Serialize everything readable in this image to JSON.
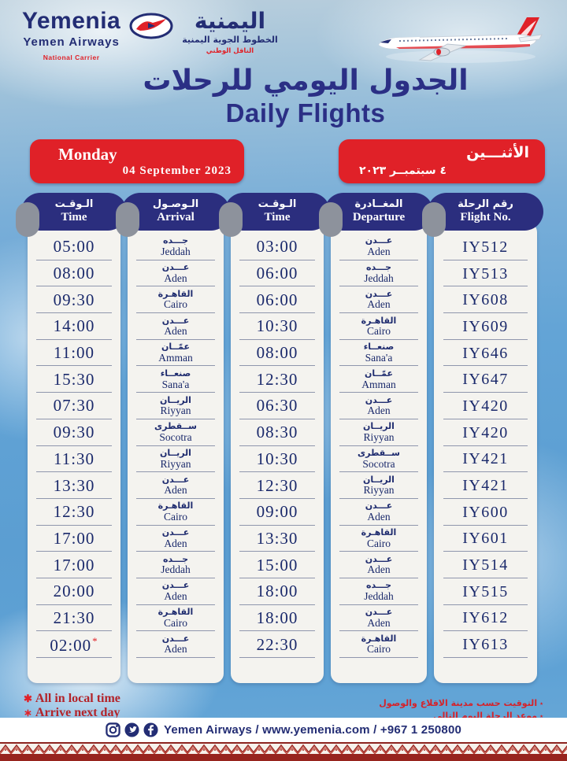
{
  "colors": {
    "accent_red": "#e02128",
    "navy": "#2b2e7e",
    "sky": "#63a4d6",
    "maroon": "#97241e"
  },
  "brand": {
    "wordmark_en": "Yemenia",
    "subtitle_en": "Yemen Airways",
    "carrier_en": "National Carrier",
    "wordmark_ar": "اليمنية",
    "subtitle_ar": "الخطوط الجوية اليمنية",
    "carrier_ar": "الناقل الوطني"
  },
  "title": {
    "ar": "الجدول اليومي للرحلات",
    "en": "Daily Flights"
  },
  "banners": {
    "left": {
      "day": "Monday",
      "date": "04  September  2023"
    },
    "right": {
      "day": "الأثنـــين",
      "date": "٤  سبتمبــر  ٢٠٢٣"
    }
  },
  "table": {
    "headers": {
      "arr_time": {
        "ar": "الـوقـت",
        "en": "Time"
      },
      "arrival": {
        "ar": "الـوصـول",
        "en": "Arrival"
      },
      "dep_time": {
        "ar": "الـوقـت",
        "en": "Time"
      },
      "departure": {
        "ar": "المغــادرة",
        "en": "Departure"
      },
      "flight_no": {
        "ar": "رقم الرحلة",
        "en": "Flight No."
      }
    },
    "flights": [
      {
        "arr_time": "05:00",
        "arr_city_ar": "جـــده",
        "arr_city_en": "Jeddah",
        "dep_time": "03:00",
        "dep_city_ar": "عـــدن",
        "dep_city_en": "Aden",
        "flight_no": "IY512"
      },
      {
        "arr_time": "08:00",
        "arr_city_ar": "عـــدن",
        "arr_city_en": "Aden",
        "dep_time": "06:00",
        "dep_city_ar": "جـــده",
        "dep_city_en": "Jeddah",
        "flight_no": "IY513"
      },
      {
        "arr_time": "09:30",
        "arr_city_ar": "القاهـرة",
        "arr_city_en": "Cairo",
        "dep_time": "06:00",
        "dep_city_ar": "عـــدن",
        "dep_city_en": "Aden",
        "flight_no": "IY608"
      },
      {
        "arr_time": "14:00",
        "arr_city_ar": "عـــدن",
        "arr_city_en": "Aden",
        "dep_time": "10:30",
        "dep_city_ar": "القاهـرة",
        "dep_city_en": "Cairo",
        "flight_no": "IY609"
      },
      {
        "arr_time": "11:00",
        "arr_city_ar": "عمّــان",
        "arr_city_en": "Amman",
        "dep_time": "08:00",
        "dep_city_ar": "صنعــاء",
        "dep_city_en": "Sana'a",
        "flight_no": "IY646"
      },
      {
        "arr_time": "15:30",
        "arr_city_ar": "صنعــاء",
        "arr_city_en": "Sana'a",
        "dep_time": "12:30",
        "dep_city_ar": "عمّــان",
        "dep_city_en": "Amman",
        "flight_no": "IY647"
      },
      {
        "arr_time": "07:30",
        "arr_city_ar": "الريــان",
        "arr_city_en": "Riyyan",
        "dep_time": "06:30",
        "dep_city_ar": "عـــدن",
        "dep_city_en": "Aden",
        "flight_no": "IY420"
      },
      {
        "arr_time": "09:30",
        "arr_city_ar": "ســقطرى",
        "arr_city_en": "Socotra",
        "dep_time": "08:30",
        "dep_city_ar": "الريــان",
        "dep_city_en": "Riyyan",
        "flight_no": "IY420"
      },
      {
        "arr_time": "11:30",
        "arr_city_ar": "الريــان",
        "arr_city_en": "Riyyan",
        "dep_time": "10:30",
        "dep_city_ar": "ســقطرى",
        "dep_city_en": "Socotra",
        "flight_no": "IY421"
      },
      {
        "arr_time": "13:30",
        "arr_city_ar": "عـــدن",
        "arr_city_en": "Aden",
        "dep_time": "12:30",
        "dep_city_ar": "الريــان",
        "dep_city_en": "Riyyan",
        "flight_no": "IY421"
      },
      {
        "arr_time": "12:30",
        "arr_city_ar": "القاهـرة",
        "arr_city_en": "Cairo",
        "dep_time": "09:00",
        "dep_city_ar": "عـــدن",
        "dep_city_en": "Aden",
        "flight_no": "IY600"
      },
      {
        "arr_time": "17:00",
        "arr_city_ar": "عـــدن",
        "arr_city_en": "Aden",
        "dep_time": "13:30",
        "dep_city_ar": "القاهـرة",
        "dep_city_en": "Cairo",
        "flight_no": "IY601"
      },
      {
        "arr_time": "17:00",
        "arr_city_ar": "جـــده",
        "arr_city_en": "Jeddah",
        "dep_time": "15:00",
        "dep_city_ar": "عـــدن",
        "dep_city_en": "Aden",
        "flight_no": "IY514"
      },
      {
        "arr_time": "20:00",
        "arr_city_ar": "عـــدن",
        "arr_city_en": "Aden",
        "dep_time": "18:00",
        "dep_city_ar": "جـــده",
        "dep_city_en": "Jeddah",
        "flight_no": "IY515"
      },
      {
        "arr_time": "21:30",
        "arr_city_ar": "القاهـرة",
        "arr_city_en": "Cairo",
        "dep_time": "18:00",
        "dep_city_ar": "عـــدن",
        "dep_city_en": "Aden",
        "flight_no": "IY612"
      },
      {
        "arr_time": "02:00",
        "arr_next_day": true,
        "arr_city_ar": "عـــدن",
        "arr_city_en": "Aden",
        "dep_time": "22:30",
        "dep_city_ar": "القاهـرة",
        "dep_city_en": "Cairo",
        "flight_no": "IY613"
      }
    ]
  },
  "footnotes": {
    "en": {
      "line1": "All in local time",
      "line2": "Arrive next day"
    },
    "ar": {
      "line1": "التوقيت حسب مدينة الاقلاع والوصول",
      "line2": "موعد الرحلة اليوم التالي"
    }
  },
  "contact_bar": {
    "text": "Yemen Airways / www.yemenia.com / +967 1 250800"
  }
}
